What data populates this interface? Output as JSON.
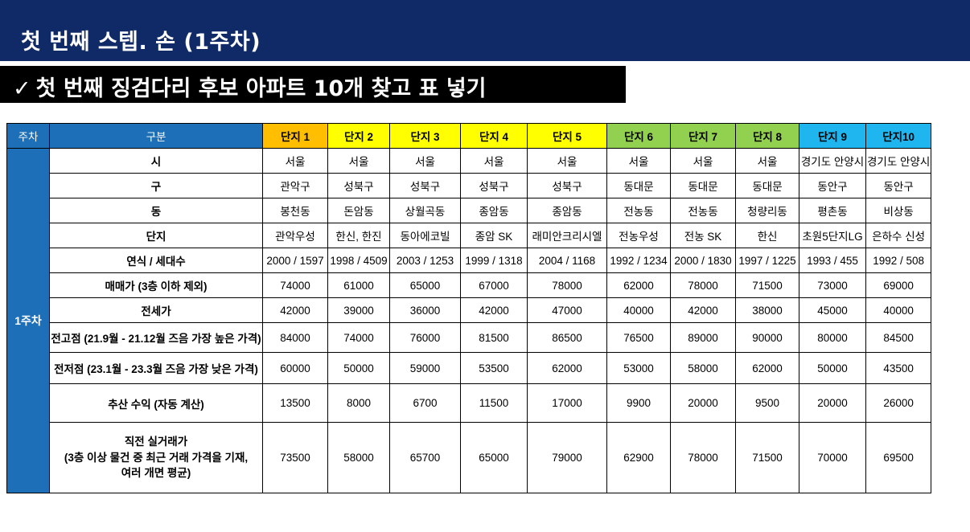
{
  "header": {
    "title": "첫 번째 스텝. 손 (1주차)",
    "check_symbol": "✓",
    "subtitle": "첫 번째 징검다리 후보 아파트 10개 찾고 표 넣기"
  },
  "table": {
    "week_header": "주차",
    "category_header": "구분",
    "week_label": "1주차",
    "complexes": [
      {
        "name": "단지 1",
        "color": "#ffbf00"
      },
      {
        "name": "단지 2",
        "color": "#ffff00"
      },
      {
        "name": "단지 3",
        "color": "#ffff00"
      },
      {
        "name": "단지 4",
        "color": "#ffff00"
      },
      {
        "name": "단지 5",
        "color": "#ffff00"
      },
      {
        "name": "단지 6",
        "color": "#92d050"
      },
      {
        "name": "단지 7",
        "color": "#92d050"
      },
      {
        "name": "단지 8",
        "color": "#92d050"
      },
      {
        "name": "단지 9",
        "color": "#1fb5ee"
      },
      {
        "name": "단지10",
        "color": "#1fb5ee"
      }
    ],
    "rows": [
      {
        "label": "시",
        "values": [
          "서울",
          "서울",
          "서울",
          "서울",
          "서울",
          "서울",
          "서울",
          "서울",
          "경기도 안양시",
          "경기도 안양시"
        ]
      },
      {
        "label": "구",
        "values": [
          "관악구",
          "성북구",
          "성북구",
          "성북구",
          "성북구",
          "동대문",
          "동대문",
          "동대문",
          "동안구",
          "동안구"
        ]
      },
      {
        "label": "동",
        "values": [
          "봉천동",
          "돈암동",
          "상월곡동",
          "종암동",
          "종암동",
          "전농동",
          "전농동",
          "청량리동",
          "평촌동",
          "비상동"
        ]
      },
      {
        "label": "단지",
        "values": [
          "관악우성",
          "한신, 한진",
          "동아에코빌",
          "종암 SK",
          "래미안크리시엘",
          "전농우성",
          "전농 SK",
          "한신",
          "초원5단지LG",
          "은하수 신성"
        ]
      },
      {
        "label": "연식 / 세대수",
        "values": [
          "2000 / 1597",
          "1998 / 4509",
          "2003 / 1253",
          "1999 / 1318",
          "2004 / 1168",
          "1992 / 1234",
          "2000 / 1830",
          "1997 / 1225",
          "1993 / 455",
          "1992 / 508"
        ]
      },
      {
        "label": "매매가 (3층 이하 제외)",
        "values": [
          "74000",
          "61000",
          "65000",
          "67000",
          "78000",
          "62000",
          "78000",
          "71500",
          "73000",
          "69000"
        ]
      },
      {
        "label": "전세가",
        "values": [
          "42000",
          "39000",
          "36000",
          "42000",
          "47000",
          "40000",
          "42000",
          "38000",
          "45000",
          "40000"
        ]
      },
      {
        "label": "전고점 (21.9월 - 21.12월 즈음 가장 높은 가격)",
        "values": [
          "84000",
          "74000",
          "76000",
          "81500",
          "86500",
          "76500",
          "89000",
          "90000",
          "80000",
          "84500"
        ]
      },
      {
        "label": "전저점 (23.1월 - 23.3월 즈음 가장 낮은 가격)",
        "values": [
          "60000",
          "50000",
          "59000",
          "53500",
          "62000",
          "53000",
          "58000",
          "62000",
          "50000",
          "43500"
        ]
      },
      {
        "label": "추산 수익 (자동 계산)",
        "values": [
          "13500",
          "8000",
          "6700",
          "11500",
          "17000",
          "9900",
          "20000",
          "9500",
          "20000",
          "26000"
        ]
      },
      {
        "label_lines": [
          "직전 실거래가",
          "(3층 이상 물건 중 최근 거래 가격을 기재,",
          "여러 개면 평균)"
        ],
        "values": [
          "73500",
          "58000",
          "65700",
          "65000",
          "79000",
          "62900",
          "78000",
          "71500",
          "70000",
          "69500"
        ]
      }
    ]
  }
}
